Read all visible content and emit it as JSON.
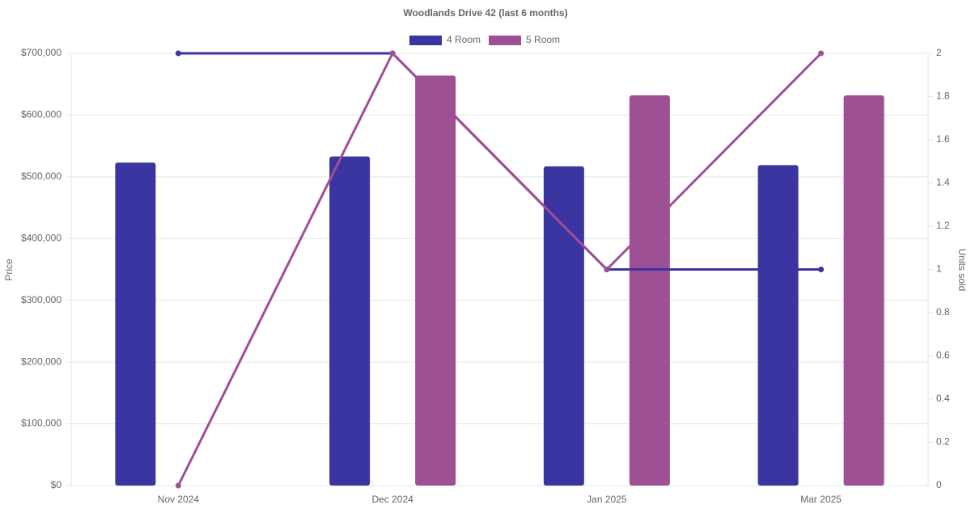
{
  "chart_data": {
    "type": "bar",
    "title": "Woodlands Drive 42 (last 6 months)",
    "categories": [
      "Nov 2024",
      "Dec 2024",
      "Jan 2025",
      "Mar 2025"
    ],
    "series": [
      {
        "name": "4 Room",
        "color": "#3a35a0",
        "values": [
          523000,
          533000,
          517000,
          519000
        ]
      },
      {
        "name": "5 Room",
        "color": "#9e5094",
        "values": [
          null,
          664000,
          632000,
          632000
        ]
      }
    ],
    "line_series": [
      {
        "type": "line",
        "axis": "y2",
        "color": "#3a35a0",
        "values": [
          2,
          2,
          1,
          1
        ]
      },
      {
        "type": "line",
        "axis": "y2",
        "color": "#9e5094",
        "values": [
          0,
          2,
          1,
          2
        ]
      }
    ],
    "ylabel": "Price",
    "y2label": "Units sold",
    "ylim": [
      0,
      700000
    ],
    "yticks": [
      {
        "value": 0,
        "label": "$0"
      },
      {
        "value": 100000,
        "label": "$100,000"
      },
      {
        "value": 200000,
        "label": "$200,000"
      },
      {
        "value": 300000,
        "label": "$300,000"
      },
      {
        "value": 400000,
        "label": "$400,000"
      },
      {
        "value": 500000,
        "label": "$500,000"
      },
      {
        "value": 600000,
        "label": "$600,000"
      },
      {
        "value": 700000,
        "label": "$700,000"
      }
    ],
    "y2lim": [
      0,
      2
    ],
    "y2ticks": [
      0,
      0.2,
      0.4,
      0.6,
      0.8,
      1,
      1.2,
      1.4,
      1.6,
      1.8,
      2
    ],
    "grid": true
  }
}
